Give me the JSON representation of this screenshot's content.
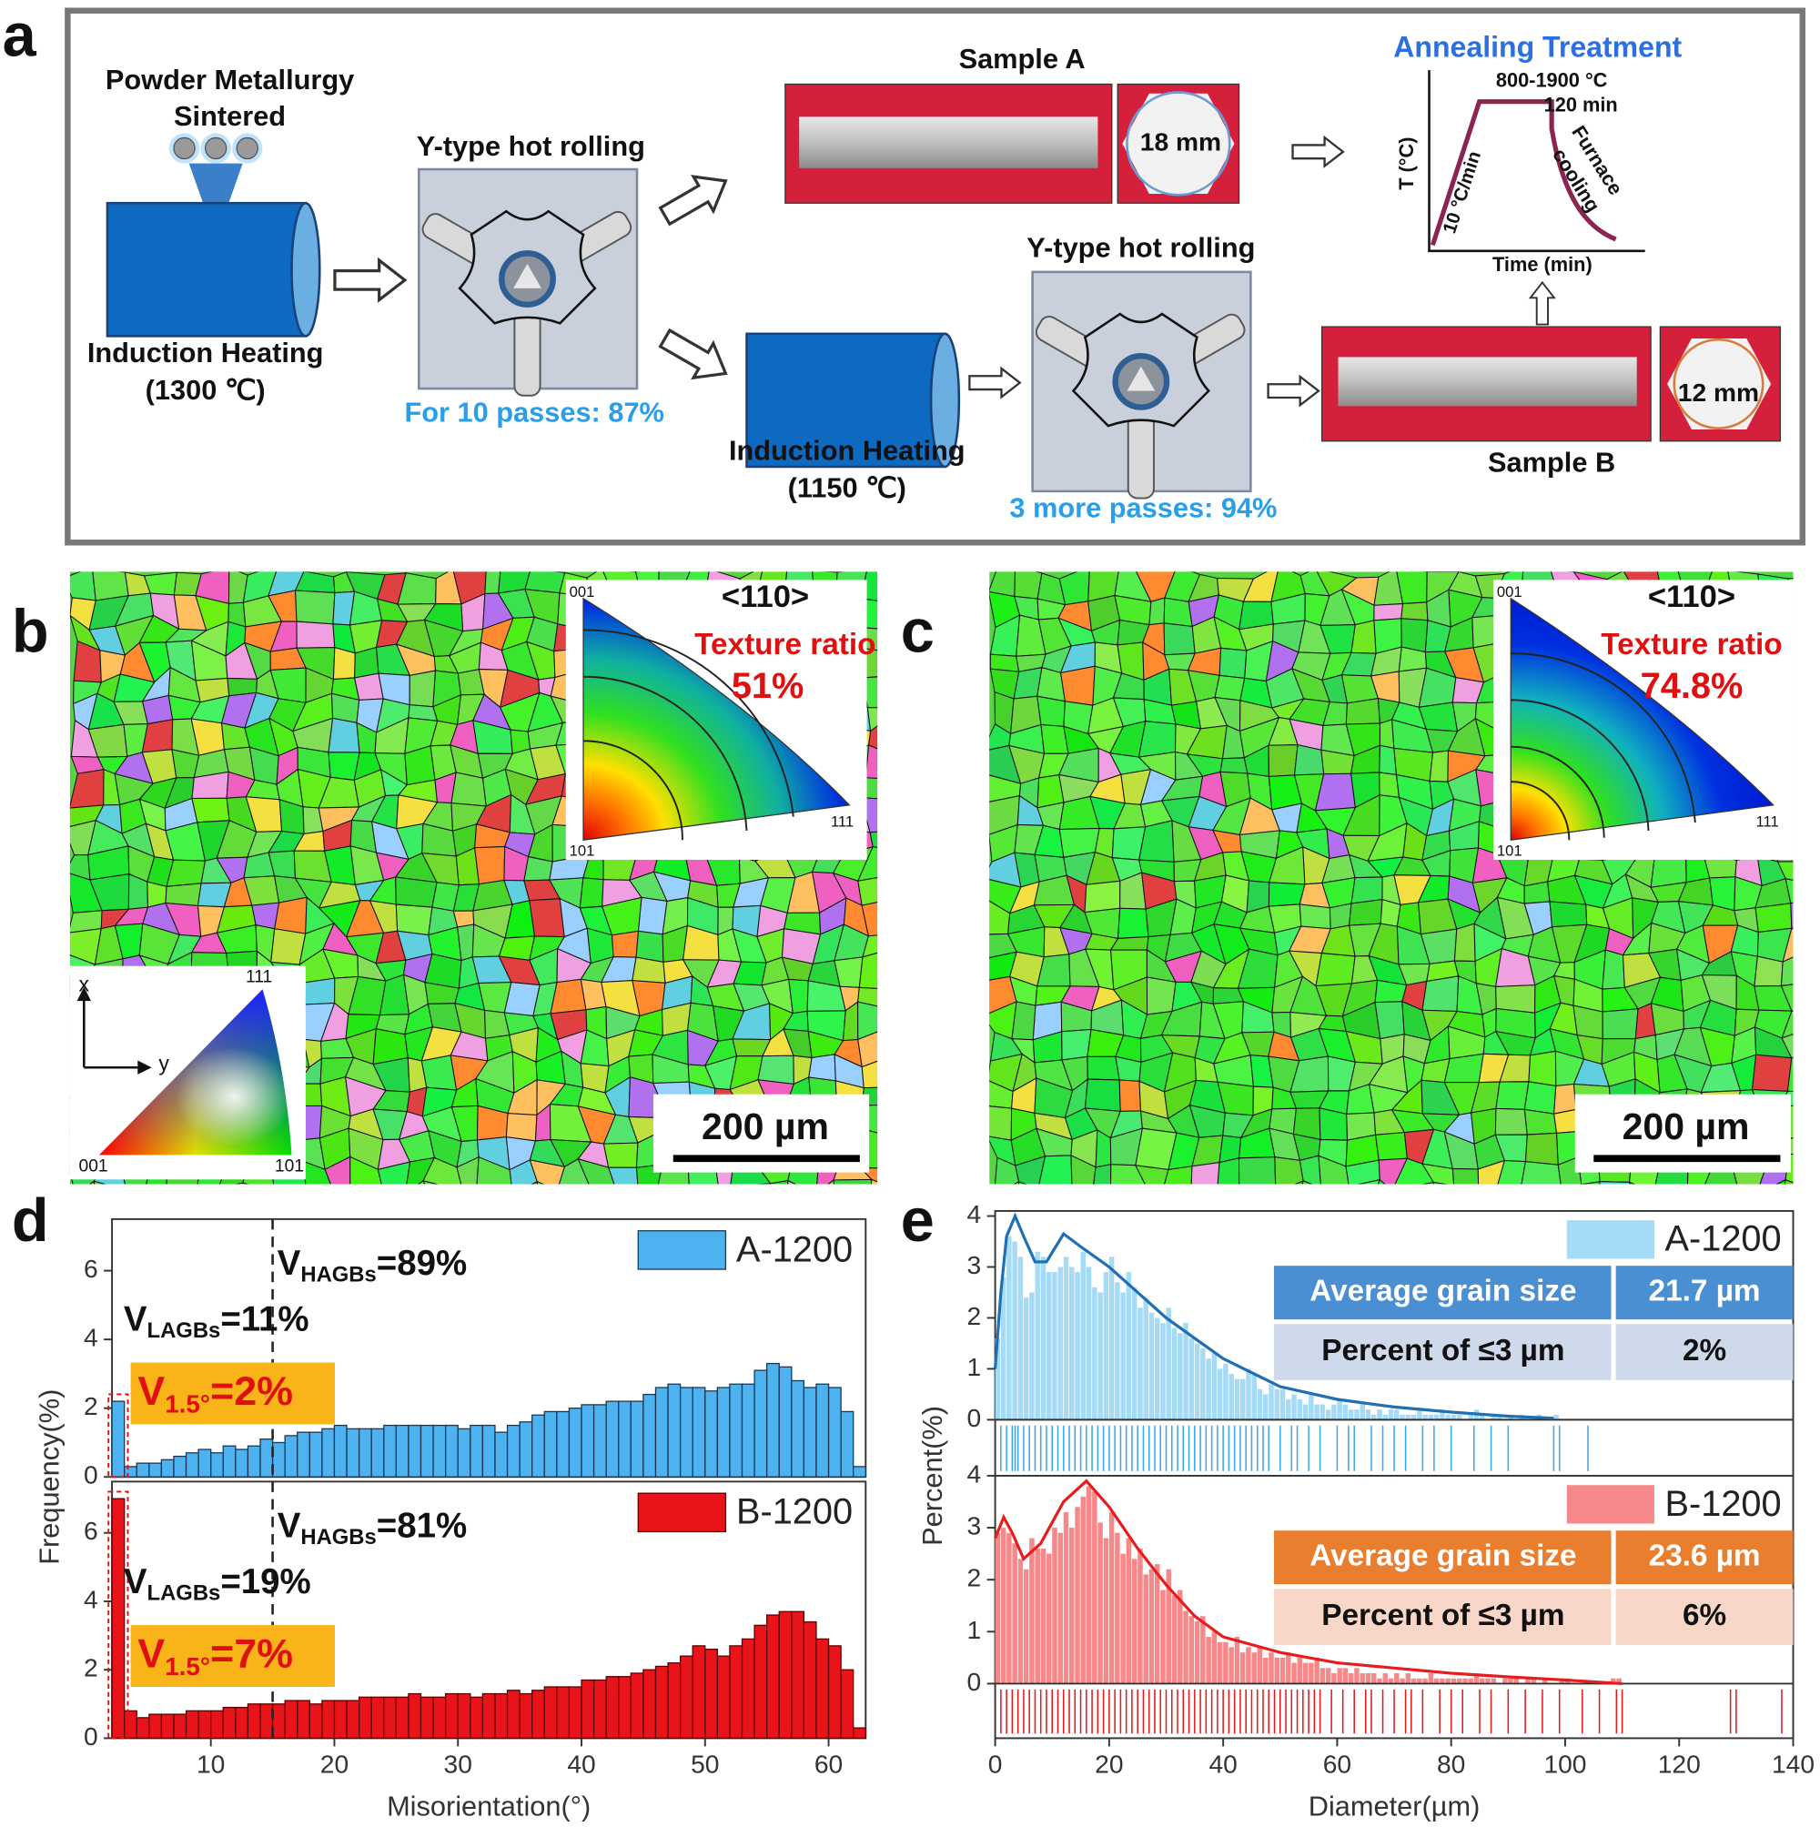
{
  "panel_labels": [
    "a",
    "b",
    "c",
    "d",
    "e"
  ],
  "panel_a": {
    "powder": [
      "Powder Metallurgy",
      "Sintered"
    ],
    "heating1": [
      "Induction Heating",
      "(1300 ℃)"
    ],
    "rolling1_title": "Y-type hot rolling",
    "rolling1_note": "For 10 passes: 87%",
    "sample_a": "Sample A",
    "sample_a_size": "18 mm",
    "annealing_title": "Annealing Treatment",
    "annealing_temp": "800-1900 °C",
    "annealing_time": "120 min",
    "y_label": "T (°C)",
    "rate": "10 °C/min",
    "cooling": [
      "Furnace",
      "cooling"
    ],
    "x_label": "Time (min)",
    "heating2": [
      "Induction Heating",
      "(1150 ℃)"
    ],
    "rolling2_title": "Y-type hot rolling",
    "rolling2_note": "3 more passes: 94%",
    "sample_b": "Sample B",
    "sample_b_size": "12 mm"
  },
  "panel_b": {
    "direction": "<110>",
    "texture_label": "Texture ratio",
    "texture_value": "51%",
    "ipf_corners": [
      "001",
      "101",
      "111"
    ],
    "scale_bar": "200 µm",
    "key_axes": [
      "x",
      "y"
    ],
    "key_corners": [
      "111",
      "001",
      "101"
    ]
  },
  "panel_c": {
    "direction": "<110>",
    "texture_label": "Texture ratio",
    "texture_value": "74.8%",
    "ipf_corners": [
      "001",
      "101",
      "111"
    ],
    "scale_bar": "200 µm"
  },
  "chart_data": [
    {
      "type": "histogram",
      "name": "A-1200",
      "color": "#4db3f0",
      "edgecolor": "#1b3550",
      "bins": [
        2,
        3,
        4,
        5,
        6,
        7,
        8,
        9,
        10,
        11,
        12,
        13,
        14,
        15,
        16,
        17,
        18,
        19,
        20,
        21,
        22,
        23,
        24,
        25,
        26,
        27,
        28,
        29,
        30,
        31,
        32,
        33,
        34,
        35,
        36,
        37,
        38,
        39,
        40,
        41,
        42,
        43,
        44,
        45,
        46,
        47,
        48,
        49,
        50,
        51,
        52,
        53,
        54,
        55,
        56,
        57,
        58,
        59,
        60,
        61,
        62,
        63
      ],
      "values": [
        2.2,
        0.3,
        0.4,
        0.4,
        0.5,
        0.6,
        0.7,
        0.8,
        0.7,
        0.9,
        0.8,
        0.9,
        1.1,
        1.0,
        1.2,
        1.3,
        1.3,
        1.4,
        1.5,
        1.4,
        1.4,
        1.4,
        1.5,
        1.5,
        1.5,
        1.5,
        1.5,
        1.5,
        1.4,
        1.5,
        1.5,
        1.3,
        1.5,
        1.6,
        1.8,
        1.9,
        1.9,
        2.0,
        2.1,
        2.1,
        2.2,
        2.2,
        2.2,
        2.4,
        2.6,
        2.7,
        2.6,
        2.6,
        2.5,
        2.6,
        2.7,
        2.7,
        3.1,
        3.3,
        3.2,
        2.8,
        2.6,
        2.7,
        2.6,
        1.9,
        0.3
      ],
      "xlim": [
        2,
        63
      ],
      "ylim": [
        0,
        7.5
      ],
      "yticks": [
        0,
        2,
        4,
        6
      ],
      "vline": 15,
      "ylabel": "Frequency(%)",
      "annotations": [
        {
          "main": "V",
          "sub": "HAGBs",
          "rest": "=89%"
        },
        {
          "main": "V",
          "sub": "LAGBs",
          "rest": "=11%"
        },
        {
          "main": "V",
          "sub": "1.5°",
          "rest": "=2%"
        }
      ]
    },
    {
      "type": "histogram",
      "name": "B-1200",
      "color": "#e8141a",
      "edgecolor": "#5a0000",
      "bins": [
        2,
        3,
        4,
        5,
        6,
        7,
        8,
        9,
        10,
        11,
        12,
        13,
        14,
        15,
        16,
        17,
        18,
        19,
        20,
        21,
        22,
        23,
        24,
        25,
        26,
        27,
        28,
        29,
        30,
        31,
        32,
        33,
        34,
        35,
        36,
        37,
        38,
        39,
        40,
        41,
        42,
        43,
        44,
        45,
        46,
        47,
        48,
        49,
        50,
        51,
        52,
        53,
        54,
        55,
        56,
        57,
        58,
        59,
        60,
        61,
        62,
        63
      ],
      "values": [
        7.0,
        0.8,
        0.6,
        0.7,
        0.7,
        0.7,
        0.8,
        0.8,
        0.8,
        0.9,
        0.9,
        1.0,
        1.0,
        1.0,
        1.1,
        1.1,
        1.0,
        1.1,
        1.1,
        1.1,
        1.2,
        1.2,
        1.2,
        1.2,
        1.3,
        1.2,
        1.2,
        1.3,
        1.3,
        1.2,
        1.3,
        1.3,
        1.4,
        1.3,
        1.4,
        1.5,
        1.5,
        1.5,
        1.7,
        1.7,
        1.8,
        1.8,
        1.9,
        2.0,
        2.1,
        2.2,
        2.4,
        2.7,
        2.6,
        2.4,
        2.7,
        2.9,
        3.3,
        3.6,
        3.7,
        3.7,
        3.4,
        2.9,
        2.7,
        2.0,
        0.3
      ],
      "xlim": [
        2,
        63
      ],
      "ylim": [
        0,
        7.5
      ],
      "yticks": [
        0,
        2,
        4,
        6
      ],
      "xticks": [
        10,
        20,
        30,
        40,
        50,
        60
      ],
      "vline": 15,
      "xlabel": "Misorientation(°)",
      "annotations": [
        {
          "main": "V",
          "sub": "HAGBs",
          "rest": "=81%"
        },
        {
          "main": "V",
          "sub": "LAGBs",
          "rest": "=19%"
        },
        {
          "main": "V",
          "sub": "1.5°",
          "rest": "=7%"
        }
      ]
    },
    {
      "type": "histogram",
      "name": "A-1200",
      "color": "#a6dbf7",
      "bins": [
        0,
        1,
        2,
        3,
        4,
        5,
        6,
        7,
        8,
        9,
        10,
        11,
        12,
        13,
        14,
        15,
        16,
        17,
        18,
        19,
        20,
        21,
        22,
        23,
        24,
        25,
        26,
        27,
        28,
        29,
        30,
        31,
        32,
        33,
        34,
        35,
        36,
        37,
        38,
        39,
        40,
        41,
        42,
        43,
        44,
        45,
        46,
        47,
        48,
        49,
        50,
        51,
        52,
        53,
        54,
        55,
        56,
        57,
        58,
        59,
        60,
        61,
        62,
        63,
        64,
        65,
        66,
        67,
        68,
        69,
        70,
        71,
        72,
        73,
        74,
        75,
        76,
        77,
        78,
        79,
        80,
        81,
        82,
        83,
        84,
        85,
        86,
        87,
        88,
        89,
        90,
        91,
        92,
        93,
        94,
        95,
        96,
        97,
        98,
        99,
        100
      ],
      "values": [
        1.6,
        2.8,
        3.6,
        3.5,
        3.2,
        2.4,
        2.5,
        3.3,
        3.2,
        2.9,
        2.9,
        3.0,
        3.2,
        3.0,
        2.9,
        3.3,
        3.0,
        2.6,
        2.5,
        2.9,
        3.2,
        2.7,
        2.5,
        2.9,
        2.6,
        2.2,
        2.4,
        2.1,
        2.0,
        1.9,
        2.2,
        1.8,
        1.7,
        1.9,
        1.6,
        1.5,
        1.4,
        1.2,
        1.3,
        1.0,
        1.1,
        0.9,
        0.8,
        0.8,
        1.0,
        0.9,
        0.6,
        0.5,
        0.7,
        0.6,
        0.6,
        0.4,
        0.5,
        0.4,
        0.3,
        0.5,
        0.3,
        0.3,
        0.2,
        0.3,
        0.4,
        0.3,
        0.2,
        0.2,
        0.3,
        0.2,
        0.1,
        0.2,
        0.1,
        0.2,
        0.2,
        0.1,
        0.1,
        0.1,
        0.2,
        0.1,
        0.1,
        0.1,
        0.2,
        0.1,
        0.1,
        0.1,
        0.0,
        0.1,
        0.2,
        0.1,
        0.0,
        0.1,
        0.1,
        0.0,
        0.1,
        0.0,
        0.1,
        0.0,
        0.0,
        0.1,
        0.0,
        0.0,
        0.1,
        0.0
      ],
      "fit": {
        "color": "#1f6fb5",
        "x": [
          0,
          1,
          2,
          3.5,
          5,
          7,
          9,
          12,
          15,
          20,
          25,
          30,
          40,
          50,
          60,
          70,
          80,
          90,
          98
        ],
        "values": [
          1.0,
          2.5,
          3.6,
          4.0,
          3.6,
          3.1,
          3.1,
          3.65,
          3.4,
          3.0,
          2.5,
          2.0,
          1.2,
          0.65,
          0.4,
          0.25,
          0.15,
          0.07,
          0.03
        ]
      },
      "rug": {
        "color": "#3aa6ea",
        "x": [
          1,
          2,
          3,
          3.5,
          4,
          5,
          6,
          7,
          8,
          9,
          10,
          11,
          12,
          13,
          14,
          15,
          16,
          17,
          18,
          19,
          20,
          21,
          22,
          23,
          24,
          25,
          26,
          27,
          28,
          29,
          30,
          31,
          32,
          33,
          34,
          35,
          36,
          37,
          38,
          39,
          40,
          41,
          42,
          43,
          44,
          45,
          46,
          47,
          48,
          50,
          52,
          53,
          55,
          57,
          60,
          62,
          63,
          66,
          68,
          70,
          72,
          75,
          77,
          80,
          84,
          87,
          90,
          98,
          99,
          104
        ]
      },
      "table": {
        "rows": [
          [
            "Average grain size",
            "21.7 µm"
          ],
          [
            "Percent of ≤3 µm",
            "2%"
          ]
        ],
        "header_color": "#4a8fd1",
        "row_color": "#cfd9ec"
      },
      "xlim": [
        0,
        140
      ],
      "ylim": [
        -1.1,
        4.1
      ],
      "yticks": [
        0,
        1,
        2,
        3,
        4
      ],
      "ylabel": "Percent(%)"
    },
    {
      "type": "histogram",
      "name": "B-1200",
      "color": "#f7888a",
      "bins": [
        0,
        1,
        2,
        3,
        4,
        5,
        6,
        7,
        8,
        9,
        10,
        11,
        12,
        13,
        14,
        15,
        16,
        17,
        18,
        19,
        20,
        21,
        22,
        23,
        24,
        25,
        26,
        27,
        28,
        29,
        30,
        31,
        32,
        33,
        34,
        35,
        36,
        37,
        38,
        39,
        40,
        41,
        42,
        43,
        44,
        45,
        46,
        47,
        48,
        49,
        50,
        51,
        52,
        53,
        54,
        55,
        56,
        57,
        58,
        59,
        60,
        61,
        62,
        63,
        64,
        65,
        66,
        67,
        68,
        69,
        70,
        71,
        72,
        73,
        74,
        75,
        76,
        77,
        78,
        79,
        80,
        81,
        82,
        83,
        84,
        85,
        86,
        87,
        88,
        89,
        90,
        91,
        92,
        93,
        94,
        95,
        96,
        97,
        98,
        99,
        100,
        101,
        102,
        103,
        104,
        105,
        106,
        107,
        108,
        109,
        110
      ],
      "values": [
        2.9,
        3.0,
        2.9,
        2.7,
        2.4,
        2.2,
        2.8,
        2.6,
        2.6,
        2.5,
        3.0,
        2.9,
        3.3,
        3.0,
        3.4,
        3.6,
        3.8,
        3.7,
        3.1,
        2.8,
        3.3,
        2.9,
        2.5,
        2.8,
        2.4,
        2.6,
        2.1,
        2.2,
        2.3,
        1.8,
        2.2,
        1.7,
        1.8,
        1.4,
        1.3,
        1.2,
        1.3,
        0.9,
        1.0,
        0.8,
        0.8,
        0.7,
        0.9,
        0.6,
        0.7,
        0.6,
        0.7,
        0.5,
        0.6,
        0.5,
        0.5,
        0.6,
        0.4,
        0.5,
        0.4,
        0.4,
        0.5,
        0.3,
        0.3,
        0.2,
        0.3,
        0.3,
        0.2,
        0.3,
        0.2,
        0.2,
        0.2,
        0.1,
        0.2,
        0.1,
        0.2,
        0.1,
        0.2,
        0.1,
        0.1,
        0.1,
        0.2,
        0.1,
        0.1,
        0.1,
        0.1,
        0.1,
        0.1,
        0.1,
        0.2,
        0.1,
        0.1,
        0.1,
        0.0,
        0.1,
        0.1,
        0.1,
        0.0,
        0.1,
        0.1,
        0.0,
        0.1,
        0.0,
        0.0,
        0.1,
        0.1,
        0.0,
        0.0,
        0.0,
        0.0,
        0.0,
        0.0,
        0.0,
        0.1,
        0.1
      ],
      "fit": {
        "color": "#e81c1c",
        "x": [
          0,
          1.5,
          3,
          5,
          8,
          12,
          16,
          20,
          25,
          30,
          35,
          40,
          50,
          60,
          70,
          80,
          90,
          100,
          110
        ],
        "values": [
          2.8,
          3.2,
          2.9,
          2.4,
          2.7,
          3.5,
          3.9,
          3.4,
          2.6,
          1.9,
          1.3,
          0.9,
          0.6,
          0.4,
          0.3,
          0.2,
          0.13,
          0.07,
          0.0
        ]
      },
      "rug": {
        "color": "#e31a1c",
        "x": [
          1,
          2,
          3,
          4,
          5,
          6,
          7,
          8,
          9,
          10,
          11,
          12,
          13,
          14,
          15,
          16,
          17,
          18,
          19,
          20,
          21,
          22,
          23,
          24,
          25,
          26,
          27,
          28,
          29,
          30,
          31,
          32,
          33,
          34,
          35,
          36,
          37,
          38,
          39,
          40,
          41,
          42,
          43,
          44,
          45,
          46,
          47,
          48,
          49,
          50,
          51,
          52,
          53,
          54,
          55,
          56,
          57,
          59,
          61,
          63,
          65,
          66,
          68,
          70,
          72,
          73,
          75,
          78,
          80,
          82,
          85,
          87,
          90,
          93,
          96,
          99,
          103,
          106,
          109,
          110,
          129,
          130,
          138
        ]
      },
      "table": {
        "rows": [
          [
            "Average grain size",
            "23.6 µm"
          ],
          [
            "Percent of ≤3 µm",
            "6%"
          ]
        ],
        "header_color": "#e87e2e",
        "row_color": "#f8d6c8"
      },
      "xlim": [
        0,
        140
      ],
      "ylim": [
        -1.05,
        4.0
      ],
      "yticks": [
        0,
        1,
        2,
        3,
        4
      ],
      "xticks": [
        0,
        20,
        40,
        60,
        80,
        100,
        120,
        140
      ],
      "xlabel": "Diameter(µm)"
    }
  ]
}
